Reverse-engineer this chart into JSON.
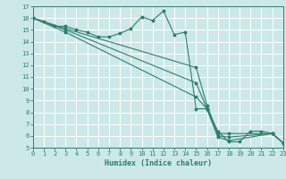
{
  "bg_color": "#cce8e8",
  "grid_color": "#ffffff",
  "line_color": "#2e7d6e",
  "xlabel": "Humidex (Indice chaleur)",
  "ylim": [
    5,
    17
  ],
  "xlim": [
    0,
    23
  ],
  "yticks": [
    5,
    6,
    7,
    8,
    9,
    10,
    11,
    12,
    13,
    14,
    15,
    16,
    17
  ],
  "xticks": [
    0,
    1,
    2,
    3,
    4,
    5,
    6,
    7,
    8,
    9,
    10,
    11,
    12,
    13,
    14,
    15,
    16,
    17,
    18,
    19,
    20,
    21,
    22,
    23
  ],
  "series": [
    {
      "x": [
        0,
        1,
        2,
        3,
        4,
        5,
        6,
        7,
        8,
        9,
        10,
        11,
        12,
        13,
        14,
        15,
        16,
        17,
        18,
        19,
        20,
        21,
        22,
        23
      ],
      "y": [
        16,
        15.7,
        15.3,
        15.3,
        15.0,
        14.8,
        14.4,
        14.4,
        14.7,
        15.1,
        16.1,
        15.8,
        16.6,
        14.6,
        14.8,
        8.3,
        8.3,
        6.4,
        5.5,
        5.5,
        6.4,
        6.4,
        6.2,
        5.4
      ]
    },
    {
      "x": [
        0,
        3,
        15,
        16,
        17,
        18,
        22,
        23
      ],
      "y": [
        16,
        15.1,
        11.8,
        8.6,
        6.2,
        6.2,
        6.2,
        5.4
      ]
    },
    {
      "x": [
        0,
        3,
        15,
        16,
        17,
        18,
        22,
        23
      ],
      "y": [
        16,
        15.0,
        10.5,
        8.3,
        6.0,
        5.9,
        6.2,
        5.4
      ]
    },
    {
      "x": [
        0,
        3,
        15,
        16,
        17,
        18,
        22,
        23
      ],
      "y": [
        16,
        14.8,
        9.3,
        8.3,
        5.9,
        5.6,
        6.2,
        5.4
      ]
    }
  ]
}
